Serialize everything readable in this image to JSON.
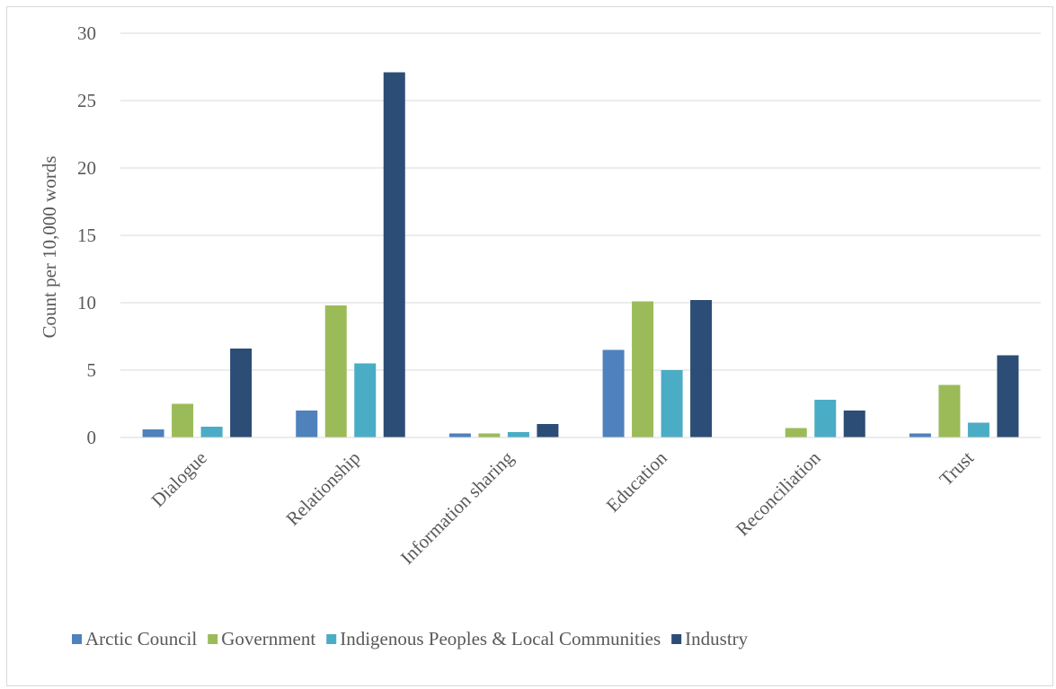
{
  "chart_data": {
    "type": "bar",
    "categories": [
      "Dialogue",
      "Relationship",
      "Information sharing",
      "Education",
      "Reconciliation",
      "Trust"
    ],
    "series": [
      {
        "name": "Arctic Council",
        "color": "#4f81bd",
        "values": [
          0.6,
          2.0,
          0.3,
          6.5,
          0.0,
          0.3
        ]
      },
      {
        "name": "Government",
        "color": "#9bbb59",
        "values": [
          2.5,
          9.8,
          0.3,
          10.1,
          0.7,
          3.9
        ]
      },
      {
        "name": "Indigenous Peoples & Local Communities",
        "color": "#4bacc6",
        "values": [
          0.8,
          5.5,
          0.4,
          5.0,
          2.8,
          1.1
        ]
      },
      {
        "name": "Industry",
        "color": "#2c4d75",
        "values": [
          6.6,
          27.1,
          1.0,
          10.2,
          2.0,
          6.1
        ]
      }
    ],
    "title": "",
    "xlabel": "",
    "ylabel": "Count per 10,000 words",
    "ylim": [
      0,
      30
    ],
    "yticks": [
      0,
      5,
      10,
      15,
      20,
      25,
      30
    ],
    "grid": true,
    "legend_position": "bottom"
  }
}
